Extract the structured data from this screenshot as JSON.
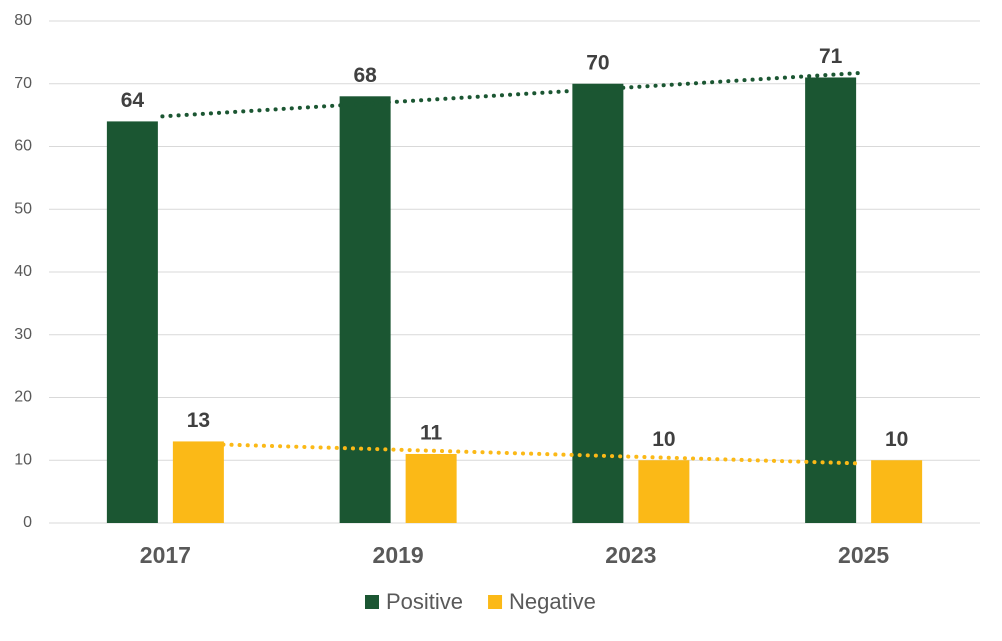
{
  "chart_data": {
    "type": "bar",
    "categories": [
      "2017",
      "2019",
      "2023",
      "2025"
    ],
    "series": [
      {
        "name": "Positive",
        "color": "#1b5632",
        "values": [
          64,
          68,
          70,
          71
        ]
      },
      {
        "name": "Negative",
        "color": "#fbb917",
        "values": [
          13,
          11,
          10,
          10
        ]
      }
    ],
    "ylim": [
      0,
      80
    ],
    "yticks": [
      0,
      10,
      20,
      30,
      40,
      50,
      60,
      70,
      80
    ],
    "grid": true,
    "trendline": true,
    "legend": "bottom"
  }
}
